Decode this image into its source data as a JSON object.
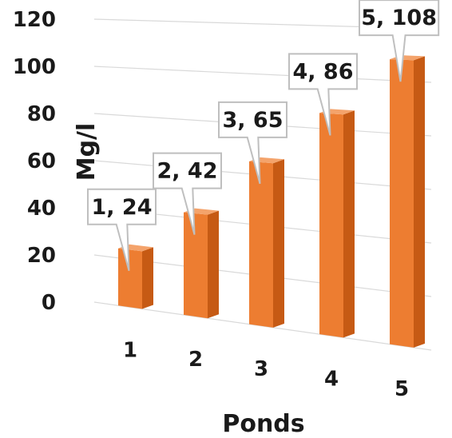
{
  "chart_data": {
    "type": "bar",
    "title": "",
    "xlabel": "Ponds",
    "ylabel": "Mg/l",
    "categories": [
      "1",
      "2",
      "3",
      "4",
      "5"
    ],
    "values": [
      24,
      42,
      65,
      86,
      108
    ],
    "ylim": [
      0,
      120
    ],
    "yticks": [
      0,
      20,
      40,
      60,
      80,
      100,
      120
    ],
    "data_labels": [
      "1, 24",
      "2, 42",
      "3, 65",
      "4, 86",
      "5, 108"
    ],
    "grid": true,
    "legend": "none",
    "colors": {
      "bar_front": "#ED7D31",
      "bar_side": "#C65A14",
      "bar_top": "#F4A36B",
      "grid": "#d9d9d9",
      "callout_border": "#bfbfbf"
    }
  }
}
